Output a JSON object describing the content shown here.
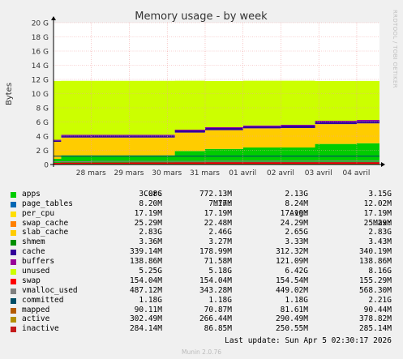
{
  "title": "Memory usage - by week",
  "side_text": "RRDTOOL / TOBI OETIKER",
  "footer": "Munin 2.0.76",
  "last_update": "Last update: Sun Apr  5 02:30:17 2026",
  "legend_headers": [
    "Cur:",
    "Min:",
    "Avg:",
    "Max:"
  ],
  "legend": [
    {
      "name": "apps",
      "color": "#00cc00",
      "cur": "3.08G",
      "min": "772.13M",
      "avg": "2.13G",
      "max": "3.15G"
    },
    {
      "name": "page_tables",
      "color": "#0066b3",
      "cur": "8.20M",
      "min": "7.77M",
      "avg": "8.24M",
      "max": "12.02M"
    },
    {
      "name": "per_cpu",
      "color": "#ffde00",
      "cur": "17.19M",
      "min": "17.19M",
      "avg": "17.19M",
      "max": "17.19M"
    },
    {
      "name": "swap_cache",
      "color": "#ff8000",
      "cur": "25.29M",
      "min": "22.48M",
      "avg": "24.29M",
      "max": "25.29M"
    },
    {
      "name": "slab_cache",
      "color": "#ffcc00",
      "cur": "2.83G",
      "min": "2.46G",
      "avg": "2.65G",
      "max": "2.83G"
    },
    {
      "name": "shmem",
      "color": "#008f00",
      "cur": "3.36M",
      "min": "3.27M",
      "avg": "3.33M",
      "max": "3.43M"
    },
    {
      "name": "cache",
      "color": "#330099",
      "cur": "339.14M",
      "min": "178.99M",
      "avg": "312.32M",
      "max": "340.19M"
    },
    {
      "name": "buffers",
      "color": "#990099",
      "cur": "138.86M",
      "min": "71.58M",
      "avg": "121.09M",
      "max": "138.86M"
    },
    {
      "name": "unused",
      "color": "#ccff00",
      "cur": "5.25G",
      "min": "5.18G",
      "avg": "6.42G",
      "max": "8.16G"
    },
    {
      "name": "swap",
      "color": "#ff0000",
      "cur": "154.04M",
      "min": "154.04M",
      "avg": "154.54M",
      "max": "155.29M"
    },
    {
      "name": "vmalloc_used",
      "color": "#808080",
      "cur": "487.12M",
      "min": "343.28M",
      "avg": "449.02M",
      "max": "568.30M"
    },
    {
      "name": "committed",
      "color": "#004d66",
      "cur": "1.18G",
      "min": "1.18G",
      "avg": "1.18G",
      "max": "2.21G"
    },
    {
      "name": "mapped",
      "color": "#b35a00",
      "cur": "90.11M",
      "min": "70.87M",
      "avg": "81.61M",
      "max": "90.44M"
    },
    {
      "name": "active",
      "color": "#b38f00",
      "cur": "302.49M",
      "min": "266.44M",
      "avg": "290.49M",
      "max": "378.82M"
    },
    {
      "name": "inactive",
      "color": "#c41a1a",
      "cur": "284.14M",
      "min": "86.85M",
      "avg": "250.55M",
      "max": "285.14M"
    }
  ],
  "chart_data": {
    "type": "area",
    "ylabel": "Bytes",
    "ylim": [
      0,
      20
    ],
    "y_unit": "G",
    "yticks": [
      0,
      2,
      4,
      6,
      8,
      10,
      12,
      14,
      16,
      18,
      20
    ],
    "ytick_labels": [
      "0",
      "2 G",
      "4 G",
      "6 G",
      "8 G",
      "10 G",
      "12 G",
      "14 G",
      "16 G",
      "18 G",
      "20 G"
    ],
    "xtick_labels": [
      "28 mars",
      "29 mars",
      "30 mars",
      "31 mars",
      "01 avril",
      "02 avril",
      "03 avril",
      "04 avril"
    ],
    "x_days": [
      0,
      0.2,
      1,
      2,
      2.6,
      3.2,
      4,
      5,
      6,
      6.9,
      8,
      8.6
    ],
    "xtick_days": [
      1,
      2,
      3,
      4,
      5,
      6,
      7,
      8
    ],
    "stack_order": [
      "apps",
      "slab_cache",
      "cache",
      "buffers",
      "unused"
    ],
    "series": [
      {
        "name": "apps",
        "values": [
          0.8,
          1.3,
          1.3,
          1.3,
          1.3,
          1.9,
          2.2,
          2.4,
          2.4,
          2.9,
          3.0,
          3.05
        ]
      },
      {
        "name": "slab_cache",
        "values": [
          2.4,
          2.5,
          2.5,
          2.5,
          2.5,
          2.6,
          2.65,
          2.7,
          2.75,
          2.8,
          2.8,
          2.83
        ]
      },
      {
        "name": "cache",
        "values": [
          0.2,
          0.3,
          0.3,
          0.3,
          0.3,
          0.3,
          0.3,
          0.3,
          0.33,
          0.34,
          0.34,
          0.34
        ]
      },
      {
        "name": "buffers",
        "values": [
          0.08,
          0.1,
          0.1,
          0.1,
          0.1,
          0.11,
          0.12,
          0.12,
          0.13,
          0.13,
          0.14,
          0.14
        ]
      },
      {
        "name": "unused",
        "values": [
          8.3,
          7.6,
          7.6,
          7.6,
          7.6,
          6.9,
          6.5,
          6.3,
          6.2,
          5.6,
          5.5,
          5.4
        ]
      }
    ],
    "lines": [
      {
        "name": "vmalloc_used",
        "values": [
          0.4,
          0.4,
          0.45,
          0.45,
          0.45,
          0.45,
          0.47,
          0.47,
          0.48,
          0.49,
          0.49,
          0.49
        ]
      },
      {
        "name": "committed",
        "values": [
          1.18,
          1.18,
          1.18,
          1.18,
          1.18,
          1.18,
          1.18,
          1.18,
          1.18,
          1.18,
          1.18,
          1.18
        ]
      },
      {
        "name": "inactive",
        "values": [
          0.1,
          0.2,
          0.22,
          0.24,
          0.25,
          0.26,
          0.27,
          0.27,
          0.28,
          0.28,
          0.28,
          0.28
        ]
      },
      {
        "name": "swap",
        "values": [
          0.154,
          0.154,
          0.154,
          0.154,
          0.154,
          0.154,
          0.154,
          0.154,
          0.154,
          0.154,
          0.154,
          0.154
        ]
      }
    ]
  }
}
